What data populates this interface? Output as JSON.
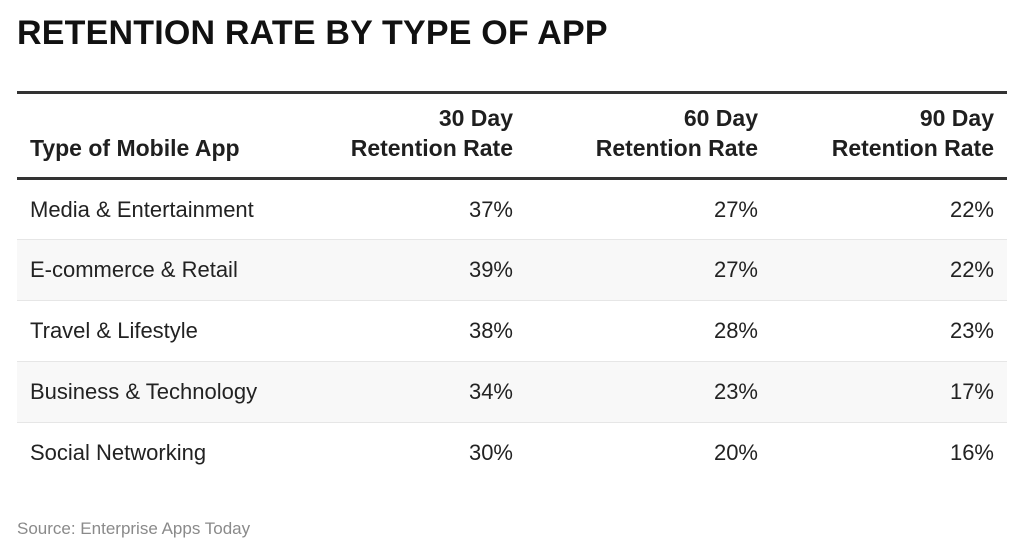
{
  "chart_data": {
    "type": "table",
    "title": "RETENTION RATE BY TYPE OF APP",
    "columns": [
      {
        "line1": "",
        "line2": "Type of Mobile App"
      },
      {
        "line1": "30 Day",
        "line2": "Retention Rate"
      },
      {
        "line1": "60 Day",
        "line2": "Retention Rate"
      },
      {
        "line1": "90 Day",
        "line2": "Retention Rate"
      }
    ],
    "rows": [
      {
        "type": "Media & Entertainment",
        "d30": "37%",
        "d60": "27%",
        "d90": "22%"
      },
      {
        "type": "E-commerce & Retail",
        "d30": "39%",
        "d60": "27%",
        "d90": "22%"
      },
      {
        "type": "Travel & Lifestyle",
        "d30": "38%",
        "d60": "28%",
        "d90": "23%"
      },
      {
        "type": "Business & Technology",
        "d30": "34%",
        "d60": "23%",
        "d90": "17%"
      },
      {
        "type": "Social Networking",
        "d30": "30%",
        "d60": "20%",
        "d90": "16%"
      }
    ],
    "source": "Source: Enterprise Apps Today"
  },
  "colors": {
    "rule": "#333333",
    "stripe": "#f8f8f8",
    "source_text": "#8a8a8a"
  }
}
